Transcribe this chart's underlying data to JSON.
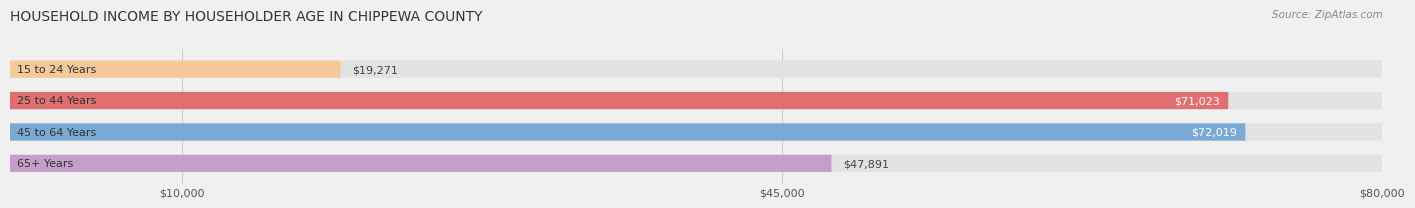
{
  "title": "HOUSEHOLD INCOME BY HOUSEHOLDER AGE IN CHIPPEWA COUNTY",
  "source": "Source: ZipAtlas.com",
  "categories": [
    "15 to 24 Years",
    "25 to 44 Years",
    "45 to 64 Years",
    "65+ Years"
  ],
  "values": [
    19271,
    71023,
    72019,
    47891
  ],
  "labels": [
    "$19,271",
    "$71,023",
    "$72,019",
    "$47,891"
  ],
  "bar_colors": [
    "#f5c99a",
    "#e07070",
    "#7aaad4",
    "#c4a0c8"
  ],
  "bar_height": 0.55,
  "xlim": [
    0,
    80000
  ],
  "xticks": [
    10000,
    45000,
    80000
  ],
  "xticklabels": [
    "$10,000",
    "$45,000",
    "$80,000"
  ],
  "bg_color": "#f0f0f0",
  "bar_bg_color": "#e2e2e2",
  "title_fontsize": 10,
  "source_fontsize": 7.5,
  "label_fontsize": 8,
  "tick_fontsize": 8,
  "cat_fontsize": 8,
  "rounding_size": 0.22
}
